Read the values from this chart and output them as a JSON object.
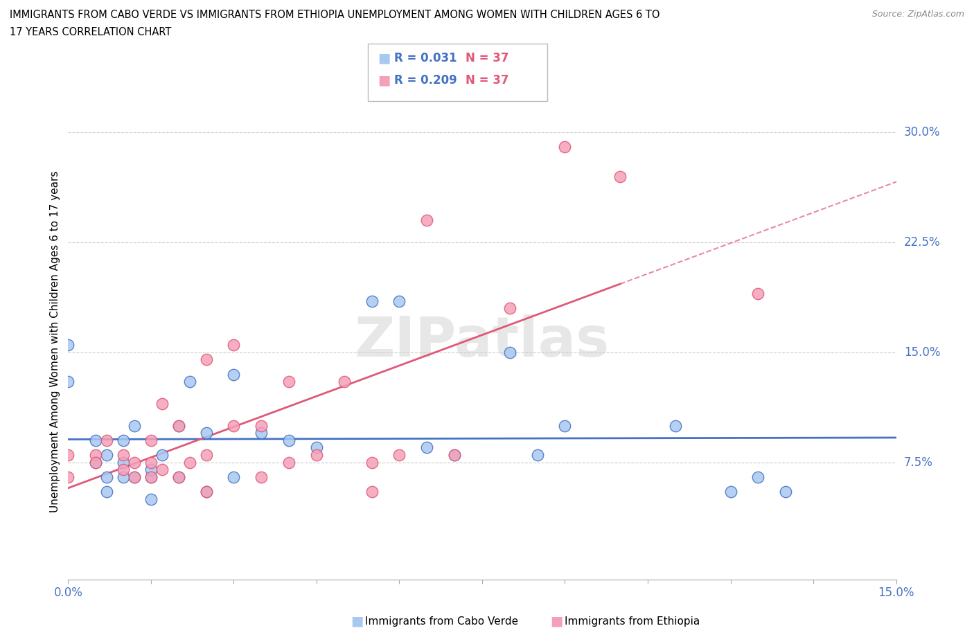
{
  "title_line1": "IMMIGRANTS FROM CABO VERDE VS IMMIGRANTS FROM ETHIOPIA UNEMPLOYMENT AMONG WOMEN WITH CHILDREN AGES 6 TO",
  "title_line2": "17 YEARS CORRELATION CHART",
  "source": "Source: ZipAtlas.com",
  "ylabel": "Unemployment Among Women with Children Ages 6 to 17 years",
  "yticks": [
    "7.5%",
    "15.0%",
    "22.5%",
    "30.0%"
  ],
  "ytick_vals": [
    0.075,
    0.15,
    0.225,
    0.3
  ],
  "xrange": [
    0.0,
    0.15
  ],
  "yrange": [
    -0.005,
    0.32
  ],
  "legend_r_cabo": "R = 0.031",
  "legend_n_cabo": "N = 37",
  "legend_r_eth": "R = 0.209",
  "legend_n_eth": "N = 37",
  "color_cabo": "#a8c8f0",
  "color_eth": "#f4a0b8",
  "color_cabo_line": "#4472c4",
  "color_eth_line": "#e05878",
  "watermark": "ZIPatlas",
  "cabo_x": [
    0.0,
    0.0,
    0.005,
    0.005,
    0.007,
    0.007,
    0.007,
    0.01,
    0.01,
    0.01,
    0.012,
    0.012,
    0.015,
    0.015,
    0.015,
    0.017,
    0.02,
    0.02,
    0.022,
    0.025,
    0.025,
    0.03,
    0.03,
    0.035,
    0.04,
    0.045,
    0.055,
    0.06,
    0.065,
    0.07,
    0.08,
    0.085,
    0.09,
    0.11,
    0.12,
    0.125,
    0.13
  ],
  "cabo_y": [
    0.13,
    0.155,
    0.075,
    0.09,
    0.055,
    0.065,
    0.08,
    0.065,
    0.075,
    0.09,
    0.065,
    0.1,
    0.05,
    0.065,
    0.07,
    0.08,
    0.065,
    0.1,
    0.13,
    0.055,
    0.095,
    0.065,
    0.135,
    0.095,
    0.09,
    0.085,
    0.185,
    0.185,
    0.085,
    0.08,
    0.15,
    0.08,
    0.1,
    0.1,
    0.055,
    0.065,
    0.055
  ],
  "eth_x": [
    0.0,
    0.0,
    0.005,
    0.005,
    0.007,
    0.01,
    0.01,
    0.012,
    0.012,
    0.015,
    0.015,
    0.015,
    0.017,
    0.017,
    0.02,
    0.02,
    0.022,
    0.025,
    0.025,
    0.025,
    0.03,
    0.03,
    0.035,
    0.035,
    0.04,
    0.04,
    0.045,
    0.05,
    0.055,
    0.055,
    0.06,
    0.065,
    0.07,
    0.08,
    0.09,
    0.1,
    0.125
  ],
  "eth_y": [
    0.065,
    0.08,
    0.08,
    0.075,
    0.09,
    0.07,
    0.08,
    0.065,
    0.075,
    0.065,
    0.075,
    0.09,
    0.07,
    0.115,
    0.065,
    0.1,
    0.075,
    0.055,
    0.08,
    0.145,
    0.1,
    0.155,
    0.065,
    0.1,
    0.075,
    0.13,
    0.08,
    0.13,
    0.055,
    0.075,
    0.08,
    0.24,
    0.08,
    0.18,
    0.29,
    0.27,
    0.19
  ]
}
